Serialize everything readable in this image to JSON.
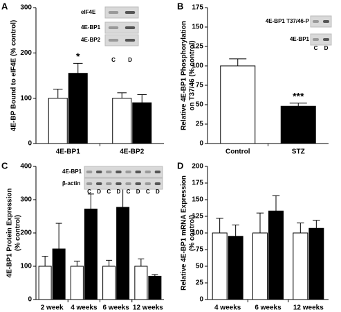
{
  "chart_data": [
    {
      "type": "bar",
      "panel": "A",
      "ylabel": [
        "4E-BP Bound to eIF4E (% control)"
      ],
      "categories": [
        "4E-BP1",
        "4E-BP2"
      ],
      "series": [
        {
          "color": "#ffffff",
          "values": [
            100,
            100
          ],
          "errors": [
            20,
            12
          ]
        },
        {
          "color": "#000000",
          "values": [
            155,
            90
          ],
          "errors": [
            22,
            18
          ],
          "value_labels": [
            "*",
            null
          ]
        }
      ],
      "ylim": [
        0,
        300
      ],
      "yticks": [
        0,
        100,
        200,
        300
      ],
      "inset": {
        "rows": [
          "eIF4E",
          "4E-BP1",
          "4E-BP2"
        ],
        "lanes": [
          "C",
          "D"
        ]
      }
    },
    {
      "type": "bar",
      "panel": "B",
      "ylabel": [
        "Relative 4E-BP1 Phosphorylation",
        "on T37/46 (% control)"
      ],
      "categories": [
        "Control",
        "STZ"
      ],
      "series": [
        {
          "color": [
            "#ffffff",
            "#000000"
          ],
          "values": [
            100,
            48
          ],
          "errors": [
            9,
            4
          ],
          "value_labels": [
            null,
            "***"
          ]
        }
      ],
      "ylim": [
        0,
        175
      ],
      "yticks": [
        0,
        25,
        50,
        75,
        100,
        125,
        150,
        175
      ],
      "inset": {
        "rows": [
          "4E-BP1 T37/46-P",
          "4E-BP1"
        ],
        "lanes": [
          "C",
          "D"
        ]
      }
    },
    {
      "type": "bar",
      "panel": "C",
      "ylabel": [
        "4E-BP1 Protein Expression",
        "(% control)"
      ],
      "categories": [
        "2 week",
        "4 weeks",
        "6 weeks",
        "12 weeks"
      ],
      "series": [
        {
          "color": "#ffffff",
          "values": [
            100,
            100,
            100,
            100
          ],
          "errors": [
            30,
            15,
            18,
            22
          ]
        },
        {
          "color": "#000000",
          "values": [
            152,
            272,
            277,
            70
          ],
          "errors": [
            77,
            45,
            75,
            5
          ],
          "value_labels": [
            null,
            "**",
            "*",
            null
          ]
        }
      ],
      "ylim": [
        0,
        400
      ],
      "yticks": [
        0,
        100,
        200,
        300,
        400
      ],
      "inset": {
        "rows": [
          "4E-BP1",
          "β-actin"
        ],
        "lanes": [
          "C",
          "D",
          "C",
          "D",
          "C",
          "D",
          "C",
          "D"
        ]
      }
    },
    {
      "type": "bar",
      "panel": "D",
      "ylabel": [
        "Relative 4E-BP1 mRNA Expression",
        "(% control)"
      ],
      "categories": [
        "4 weeks",
        "6 weeks",
        "12 weeks"
      ],
      "series": [
        {
          "color": "#ffffff",
          "values": [
            100,
            100,
            100
          ],
          "errors": [
            22,
            30,
            15
          ]
        },
        {
          "color": "#000000",
          "values": [
            95,
            133,
            107
          ],
          "errors": [
            17,
            23,
            12
          ]
        }
      ],
      "ylim": [
        0,
        200
      ],
      "yticks": [
        0,
        25,
        50,
        75,
        100,
        125,
        150,
        175,
        200
      ]
    }
  ]
}
